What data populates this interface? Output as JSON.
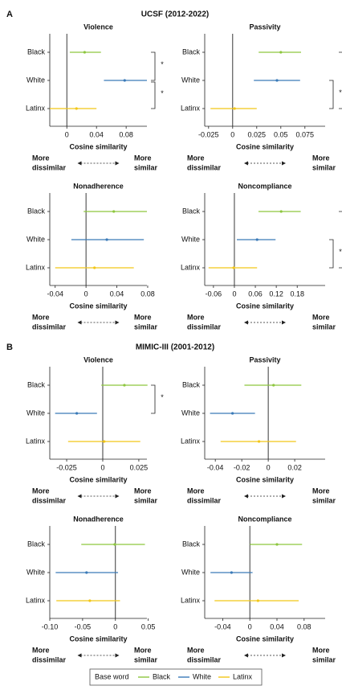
{
  "sections": [
    {
      "label": "A",
      "title": "UCSF (2012-2022)"
    },
    {
      "label": "B",
      "title": "MIMIC-III (2001-2012)"
    }
  ],
  "legend": {
    "title": "Base word",
    "items": [
      {
        "name": "Black",
        "color": "#8dc63f"
      },
      {
        "name": "White",
        "color": "#3a7ab8"
      },
      {
        "name": "Latinx",
        "color": "#f2c618"
      }
    ]
  },
  "chart_data": [
    {
      "type": "forest",
      "title": "Violence",
      "categories": [
        "Black",
        "White",
        "Latinx"
      ],
      "values": [
        0.024,
        0.078,
        0.013
      ],
      "ci_low": [
        0.004,
        0.05,
        -0.023
      ],
      "ci_high": [
        0.046,
        0.108,
        0.04
      ],
      "xlim": [
        -0.023,
        0.108
      ],
      "xticks": [
        0,
        0.04,
        0.08
      ],
      "xlabel": "Cosine similarity",
      "direction_labels": {
        "left": [
          "More",
          "dissimilar"
        ],
        "right": [
          "More",
          "similar"
        ]
      },
      "brackets": [
        {
          "from": 0,
          "to": 1,
          "label": "*"
        },
        {
          "from": 1,
          "to": 2,
          "label": "*"
        }
      ]
    },
    {
      "type": "forest",
      "title": "Passivity",
      "categories": [
        "Black",
        "White",
        "Latinx"
      ],
      "values": [
        0.05,
        0.046,
        0.002
      ],
      "ci_low": [
        0.027,
        0.022,
        -0.023
      ],
      "ci_high": [
        0.071,
        0.07,
        0.025
      ],
      "xlim": [
        -0.029,
        0.096
      ],
      "xticks": [
        -0.025,
        0,
        0.025,
        0.05,
        0.075
      ],
      "xlabel": "Cosine similarity",
      "direction_labels": {
        "left": [
          "More",
          "dissimilar"
        ],
        "right": [
          "More",
          "similar"
        ]
      },
      "brackets": [
        {
          "from": 0,
          "to": 2,
          "label": "*"
        },
        {
          "from": 1,
          "to": 2,
          "label": "*"
        }
      ]
    },
    {
      "type": "forest",
      "title": "Nonadherence",
      "categories": [
        "Black",
        "White",
        "Latinx"
      ],
      "values": [
        0.036,
        0.027,
        0.011
      ],
      "ci_low": [
        -0.003,
        -0.019,
        -0.04
      ],
      "ci_high": [
        0.079,
        0.075,
        0.062
      ],
      "xlim": [
        -0.047,
        0.079
      ],
      "xticks": [
        -0.04,
        0,
        0.04,
        0.08
      ],
      "xlabel": "Cosine similarity",
      "direction_labels": {
        "left": [
          "More",
          "dissimilar"
        ],
        "right": [
          "More",
          "similar"
        ]
      },
      "brackets": []
    },
    {
      "type": "forest",
      "title": "Noncompliance",
      "categories": [
        "Black",
        "White",
        "Latinx"
      ],
      "values": [
        0.134,
        0.065,
        -0.002
      ],
      "ci_low": [
        0.069,
        0.007,
        -0.074
      ],
      "ci_high": [
        0.19,
        0.118,
        0.065
      ],
      "xlim": [
        -0.085,
        0.26
      ],
      "xticks": [
        -0.06,
        0,
        0.06,
        0.12,
        0.18
      ],
      "xlabel": "Cosine similarity",
      "direction_labels": {
        "left": [
          "More",
          "dissimilar"
        ],
        "right": [
          "More",
          "similar"
        ]
      },
      "brackets": [
        {
          "from": 0,
          "to": 2,
          "label": "*"
        },
        {
          "from": 1,
          "to": 2,
          "label": "*"
        }
      ]
    },
    {
      "type": "forest",
      "title": "Violence",
      "categories": [
        "Black",
        "White",
        "Latinx"
      ],
      "values": [
        0.015,
        -0.018,
        0.001
      ],
      "ci_low": [
        -0.001,
        -0.033,
        -0.024
      ],
      "ci_high": [
        0.031,
        -0.004,
        0.026
      ],
      "xlim": [
        -0.0367,
        0.0306
      ],
      "xticks": [
        -0.025,
        0,
        0.025
      ],
      "xlabel": "Cosine similarity",
      "direction_labels": {
        "left": [
          "More",
          "dissimilar"
        ],
        "right": [
          "More",
          "similar"
        ]
      },
      "brackets": [
        {
          "from": 0,
          "to": 1,
          "label": "*"
        }
      ]
    },
    {
      "type": "forest",
      "title": "Passivity",
      "categories": [
        "Black",
        "White",
        "Latinx"
      ],
      "values": [
        0.004,
        -0.027,
        -0.007
      ],
      "ci_low": [
        -0.018,
        -0.044,
        -0.036
      ],
      "ci_high": [
        0.025,
        -0.01,
        0.021
      ],
      "xlim": [
        -0.048,
        0.043
      ],
      "xticks": [
        -0.04,
        -0.02,
        0,
        0.02
      ],
      "xlabel": "Cosine similarity",
      "direction_labels": {
        "left": [
          "More",
          "dissimilar"
        ],
        "right": [
          "More",
          "similar"
        ]
      },
      "brackets": []
    },
    {
      "type": "forest",
      "title": "Nonadherence",
      "categories": [
        "Black",
        "White",
        "Latinx"
      ],
      "values": [
        -0.001,
        -0.044,
        -0.039
      ],
      "ci_low": [
        -0.052,
        -0.091,
        -0.09
      ],
      "ci_high": [
        0.045,
        0.004,
        0.007
      ],
      "xlim": [
        -0.1,
        0.048
      ],
      "xticks": [
        {
          "value": -0.1,
          "label": "-0.10"
        },
        -0.05,
        0,
        0.05
      ],
      "xlabel": "Cosine similarity",
      "direction_labels": {
        "left": [
          "More",
          "dissimilar"
        ],
        "right": [
          "More",
          "similar"
        ]
      },
      "brackets": []
    },
    {
      "type": "forest",
      "title": "Noncompliance",
      "categories": [
        "Black",
        "White",
        "Latinx"
      ],
      "values": [
        0.04,
        -0.027,
        0.012
      ],
      "ci_low": [
        0,
        -0.058,
        -0.052
      ],
      "ci_high": [
        0.077,
        0.004,
        0.072
      ],
      "xlim": [
        -0.0665,
        0.111
      ],
      "xticks": [
        -0.04,
        0,
        0.04,
        0.08
      ],
      "xlabel": "Cosine similarity",
      "direction_labels": {
        "left": [
          "More",
          "dissimilar"
        ],
        "right": [
          "More",
          "similar"
        ]
      },
      "brackets": []
    }
  ]
}
